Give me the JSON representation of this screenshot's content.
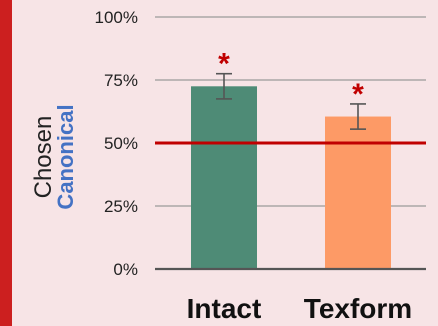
{
  "chart_data": {
    "type": "bar",
    "categories": [
      "Intact",
      "Texform"
    ],
    "values": [
      72.5,
      60.5
    ],
    "error_bars": [
      5.0,
      5.0
    ],
    "significance": [
      "*",
      "*"
    ],
    "ylabel": [
      "Chosen",
      "Canonical"
    ],
    "ylim": [
      0,
      100
    ],
    "y_ticks": [
      "0%",
      "25%",
      "50%",
      "75%",
      "100%"
    ],
    "y_tick_values": [
      0,
      25,
      50,
      75,
      100
    ],
    "reference_line": 50,
    "grid": "horizontal"
  },
  "colors": {
    "background": "#F7E4E6",
    "left_accent": "#CC1F1F",
    "bars": [
      "#4E8B76",
      "#FD9A66"
    ],
    "reference_line": "#C00000",
    "asterisk": "#C00000",
    "gridline": "#9A9A9A",
    "axis": "#555555",
    "error_bar": "#555555",
    "ylabel_accent": "#4472C4"
  }
}
